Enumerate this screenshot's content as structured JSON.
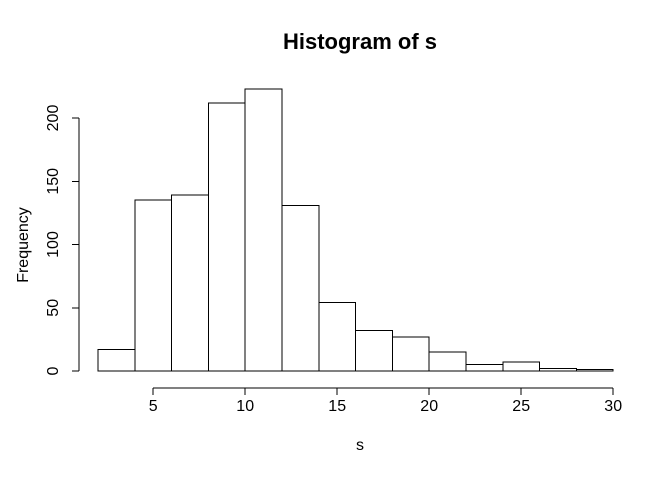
{
  "chart_data": {
    "type": "bar",
    "subtype": "histogram",
    "title": "Histogram of s",
    "xlabel": "s",
    "ylabel": "Frequency",
    "bin_edges": [
      2,
      4,
      6,
      8,
      10,
      12,
      14,
      16,
      18,
      20,
      22,
      24,
      26,
      28,
      30
    ],
    "counts": [
      17,
      135,
      139,
      212,
      223,
      131,
      54,
      32,
      27,
      15,
      5,
      7,
      2,
      1
    ],
    "x_ticks": [
      "5",
      "10",
      "15",
      "20",
      "25",
      "30"
    ],
    "x_tick_values": [
      5,
      10,
      15,
      20,
      25,
      30
    ],
    "y_ticks": [
      "0",
      "50",
      "100",
      "150",
      "200"
    ],
    "y_tick_values": [
      0,
      50,
      100,
      150,
      200
    ],
    "xlim": [
      2,
      30
    ],
    "ylim": [
      0,
      232
    ],
    "grid": false,
    "legend": null,
    "bar_fill": "#ffffff",
    "bar_stroke": "#000000",
    "axis_color": "#000000",
    "text_color": "#000000",
    "background": "#ffffff"
  }
}
